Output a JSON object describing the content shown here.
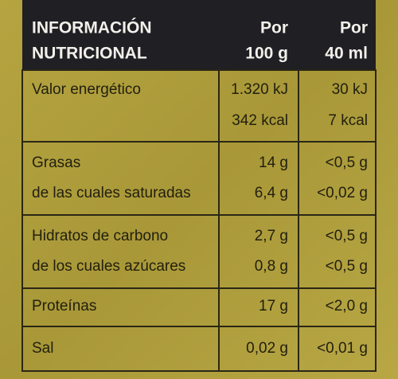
{
  "header": {
    "title": [
      "INFORMACIÓN",
      "NUTRICIONAL"
    ],
    "columns": [
      [
        "Por",
        "100 g"
      ],
      [
        "Por",
        "40 ml"
      ]
    ]
  },
  "rows": [
    [
      [
        "Valor energético"
      ],
      [
        "1.320 kJ",
        "342 kcal"
      ],
      [
        "30 kJ",
        "7 kcal"
      ]
    ],
    [
      [
        "Grasas",
        "de las cuales saturadas"
      ],
      [
        "14 g",
        "6,4 g"
      ],
      [
        "<0,5 g",
        "<0,02 g"
      ]
    ],
    [
      [
        "Hidratos de carbono",
        "de los cuales azúcares"
      ],
      [
        "2,7 g",
        "0,8 g"
      ],
      [
        "<0,5  g",
        "<0,5  g"
      ]
    ],
    [
      [
        "Proteínas"
      ],
      [
        "17 g"
      ],
      [
        "<2,0 g"
      ]
    ],
    [
      [
        "Sal"
      ],
      [
        "0,02 g"
      ],
      [
        "<0,01 g"
      ]
    ]
  ]
}
